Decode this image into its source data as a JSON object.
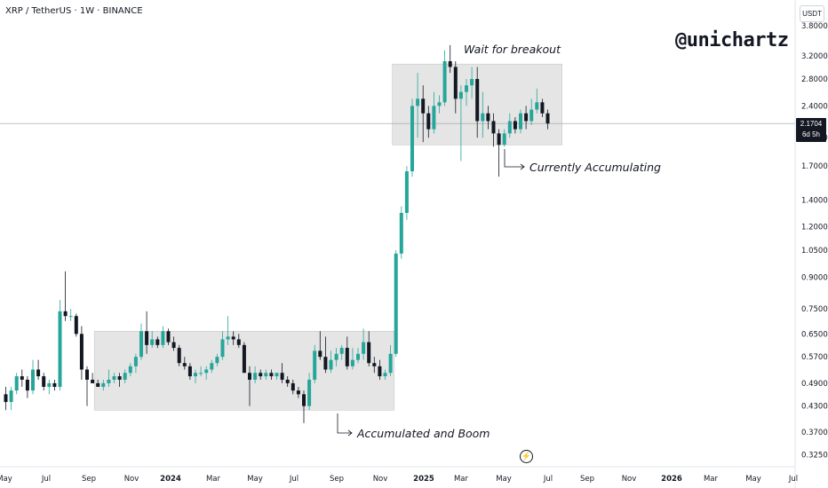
{
  "header": {
    "symbol": "XRP / TetherUS · 1W · BINANCE",
    "currency": "USDT"
  },
  "watermark": "@unichartz",
  "current_price": {
    "value": "2.1704",
    "countdown": "6d 5h"
  },
  "annotations": {
    "top": "Wait for breakout",
    "right": "Currently Accumulating",
    "bottom": "Accumulated and Boom"
  },
  "colors": {
    "up": "#26a69a",
    "down": "#131722",
    "box": "#dcdcdc",
    "price_line": "#9aa0a6"
  },
  "chart_data": {
    "type": "candlestick",
    "y_scale": "log",
    "ylim": [
      0.31,
      4.1
    ],
    "y_ticks": [
      "3.8000",
      "3.2000",
      "2.8000",
      "2.4000",
      "2.0000",
      "1.7000",
      "1.4000",
      "1.2000",
      "1.0500",
      "0.9000",
      "0.7500",
      "0.6500",
      "0.5700",
      "0.4900",
      "0.4300",
      "0.3700",
      "0.3250"
    ],
    "x_ticks": [
      "May",
      "Jul",
      "Sep",
      "Nov",
      "2024",
      "Mar",
      "May",
      "Jul",
      "Sep",
      "Nov",
      "2025",
      "Mar",
      "May",
      "Jul",
      "Sep",
      "Nov",
      "2026",
      "Mar",
      "May",
      "Jul"
    ],
    "candles": [
      {
        "o": 0.46,
        "h": 0.48,
        "l": 0.42,
        "c": 0.44
      },
      {
        "o": 0.44,
        "h": 0.48,
        "l": 0.42,
        "c": 0.47
      },
      {
        "o": 0.47,
        "h": 0.52,
        "l": 0.46,
        "c": 0.51
      },
      {
        "o": 0.51,
        "h": 0.53,
        "l": 0.48,
        "c": 0.5
      },
      {
        "o": 0.5,
        "h": 0.51,
        "l": 0.45,
        "c": 0.47
      },
      {
        "o": 0.47,
        "h": 0.56,
        "l": 0.46,
        "c": 0.53
      },
      {
        "o": 0.53,
        "h": 0.56,
        "l": 0.5,
        "c": 0.51
      },
      {
        "o": 0.51,
        "h": 0.52,
        "l": 0.47,
        "c": 0.48
      },
      {
        "o": 0.48,
        "h": 0.5,
        "l": 0.46,
        "c": 0.49
      },
      {
        "o": 0.49,
        "h": 0.5,
        "l": 0.47,
        "c": 0.48
      },
      {
        "o": 0.48,
        "h": 0.79,
        "l": 0.47,
        "c": 0.74
      },
      {
        "o": 0.74,
        "h": 0.93,
        "l": 0.7,
        "c": 0.72
      },
      {
        "o": 0.72,
        "h": 0.75,
        "l": 0.7,
        "c": 0.72
      },
      {
        "o": 0.72,
        "h": 0.73,
        "l": 0.64,
        "c": 0.65
      },
      {
        "o": 0.65,
        "h": 0.68,
        "l": 0.5,
        "c": 0.53
      },
      {
        "o": 0.53,
        "h": 0.54,
        "l": 0.43,
        "c": 0.5
      },
      {
        "o": 0.5,
        "h": 0.52,
        "l": 0.49,
        "c": 0.49
      },
      {
        "o": 0.49,
        "h": 0.5,
        "l": 0.48,
        "c": 0.48
      },
      {
        "o": 0.48,
        "h": 0.5,
        "l": 0.47,
        "c": 0.49
      },
      {
        "o": 0.49,
        "h": 0.53,
        "l": 0.48,
        "c": 0.5
      },
      {
        "o": 0.5,
        "h": 0.52,
        "l": 0.49,
        "c": 0.51
      },
      {
        "o": 0.51,
        "h": 0.52,
        "l": 0.48,
        "c": 0.5
      },
      {
        "o": 0.5,
        "h": 0.53,
        "l": 0.49,
        "c": 0.52
      },
      {
        "o": 0.52,
        "h": 0.55,
        "l": 0.51,
        "c": 0.54
      },
      {
        "o": 0.54,
        "h": 0.58,
        "l": 0.52,
        "c": 0.57
      },
      {
        "o": 0.57,
        "h": 0.69,
        "l": 0.56,
        "c": 0.66
      },
      {
        "o": 0.66,
        "h": 0.74,
        "l": 0.58,
        "c": 0.61
      },
      {
        "o": 0.61,
        "h": 0.66,
        "l": 0.6,
        "c": 0.63
      },
      {
        "o": 0.63,
        "h": 0.64,
        "l": 0.6,
        "c": 0.61
      },
      {
        "o": 0.61,
        "h": 0.68,
        "l": 0.6,
        "c": 0.66
      },
      {
        "o": 0.66,
        "h": 0.67,
        "l": 0.61,
        "c": 0.62
      },
      {
        "o": 0.62,
        "h": 0.64,
        "l": 0.59,
        "c": 0.6
      },
      {
        "o": 0.6,
        "h": 0.61,
        "l": 0.54,
        "c": 0.55
      },
      {
        "o": 0.55,
        "h": 0.57,
        "l": 0.53,
        "c": 0.54
      },
      {
        "o": 0.54,
        "h": 0.55,
        "l": 0.5,
        "c": 0.51
      },
      {
        "o": 0.51,
        "h": 0.53,
        "l": 0.49,
        "c": 0.52
      },
      {
        "o": 0.52,
        "h": 0.54,
        "l": 0.51,
        "c": 0.52
      },
      {
        "o": 0.52,
        "h": 0.54,
        "l": 0.5,
        "c": 0.53
      },
      {
        "o": 0.53,
        "h": 0.56,
        "l": 0.52,
        "c": 0.55
      },
      {
        "o": 0.55,
        "h": 0.58,
        "l": 0.54,
        "c": 0.57
      },
      {
        "o": 0.57,
        "h": 0.66,
        "l": 0.56,
        "c": 0.63
      },
      {
        "o": 0.63,
        "h": 0.72,
        "l": 0.61,
        "c": 0.64
      },
      {
        "o": 0.64,
        "h": 0.66,
        "l": 0.61,
        "c": 0.63
      },
      {
        "o": 0.63,
        "h": 0.65,
        "l": 0.6,
        "c": 0.61
      },
      {
        "o": 0.61,
        "h": 0.62,
        "l": 0.55,
        "c": 0.52
      },
      {
        "o": 0.52,
        "h": 0.54,
        "l": 0.43,
        "c": 0.5
      },
      {
        "o": 0.5,
        "h": 0.54,
        "l": 0.49,
        "c": 0.52
      },
      {
        "o": 0.52,
        "h": 0.53,
        "l": 0.5,
        "c": 0.51
      },
      {
        "o": 0.51,
        "h": 0.53,
        "l": 0.5,
        "c": 0.52
      },
      {
        "o": 0.52,
        "h": 0.53,
        "l": 0.5,
        "c": 0.51
      },
      {
        "o": 0.51,
        "h": 0.52,
        "l": 0.5,
        "c": 0.52
      },
      {
        "o": 0.52,
        "h": 0.55,
        "l": 0.49,
        "c": 0.5
      },
      {
        "o": 0.5,
        "h": 0.51,
        "l": 0.48,
        "c": 0.49
      },
      {
        "o": 0.49,
        "h": 0.5,
        "l": 0.46,
        "c": 0.47
      },
      {
        "o": 0.47,
        "h": 0.48,
        "l": 0.45,
        "c": 0.46
      },
      {
        "o": 0.46,
        "h": 0.47,
        "l": 0.39,
        "c": 0.43
      },
      {
        "o": 0.43,
        "h": 0.52,
        "l": 0.42,
        "c": 0.5
      },
      {
        "o": 0.5,
        "h": 0.61,
        "l": 0.49,
        "c": 0.59
      },
      {
        "o": 0.59,
        "h": 0.66,
        "l": 0.56,
        "c": 0.57
      },
      {
        "o": 0.57,
        "h": 0.64,
        "l": 0.52,
        "c": 0.53
      },
      {
        "o": 0.53,
        "h": 0.59,
        "l": 0.52,
        "c": 0.56
      },
      {
        "o": 0.56,
        "h": 0.6,
        "l": 0.54,
        "c": 0.58
      },
      {
        "o": 0.58,
        "h": 0.61,
        "l": 0.56,
        "c": 0.6
      },
      {
        "o": 0.6,
        "h": 0.64,
        "l": 0.53,
        "c": 0.54
      },
      {
        "o": 0.54,
        "h": 0.6,
        "l": 0.53,
        "c": 0.56
      },
      {
        "o": 0.56,
        "h": 0.6,
        "l": 0.55,
        "c": 0.58
      },
      {
        "o": 0.58,
        "h": 0.67,
        "l": 0.56,
        "c": 0.62
      },
      {
        "o": 0.62,
        "h": 0.66,
        "l": 0.54,
        "c": 0.55
      },
      {
        "o": 0.55,
        "h": 0.57,
        "l": 0.52,
        "c": 0.54
      },
      {
        "o": 0.54,
        "h": 0.56,
        "l": 0.5,
        "c": 0.51
      },
      {
        "o": 0.51,
        "h": 0.53,
        "l": 0.5,
        "c": 0.52
      },
      {
        "o": 0.52,
        "h": 0.61,
        "l": 0.51,
        "c": 0.58
      },
      {
        "o": 0.58,
        "h": 1.05,
        "l": 0.57,
        "c": 1.03
      },
      {
        "o": 1.03,
        "h": 1.35,
        "l": 1.0,
        "c": 1.3
      },
      {
        "o": 1.3,
        "h": 1.7,
        "l": 1.25,
        "c": 1.65
      },
      {
        "o": 1.65,
        "h": 2.5,
        "l": 1.6,
        "c": 2.4
      },
      {
        "o": 2.4,
        "h": 2.9,
        "l": 2.0,
        "c": 2.5
      },
      {
        "o": 2.5,
        "h": 2.7,
        "l": 1.95,
        "c": 2.3
      },
      {
        "o": 2.3,
        "h": 2.4,
        "l": 2.0,
        "c": 2.1
      },
      {
        "o": 2.1,
        "h": 2.6,
        "l": 2.05,
        "c": 2.4
      },
      {
        "o": 2.4,
        "h": 2.55,
        "l": 2.3,
        "c": 2.45
      },
      {
        "o": 2.45,
        "h": 3.3,
        "l": 2.4,
        "c": 3.1
      },
      {
        "o": 3.1,
        "h": 3.4,
        "l": 2.9,
        "c": 3.0
      },
      {
        "o": 3.0,
        "h": 3.1,
        "l": 2.3,
        "c": 2.5
      },
      {
        "o": 2.5,
        "h": 2.7,
        "l": 1.75,
        "c": 2.6
      },
      {
        "o": 2.6,
        "h": 2.8,
        "l": 2.4,
        "c": 2.7
      },
      {
        "o": 2.7,
        "h": 3.0,
        "l": 2.5,
        "c": 2.8
      },
      {
        "o": 2.8,
        "h": 3.0,
        "l": 2.0,
        "c": 2.2
      },
      {
        "o": 2.2,
        "h": 2.6,
        "l": 2.0,
        "c": 2.3
      },
      {
        "o": 2.3,
        "h": 2.4,
        "l": 2.1,
        "c": 2.2
      },
      {
        "o": 2.2,
        "h": 2.3,
        "l": 1.9,
        "c": 2.05
      },
      {
        "o": 2.05,
        "h": 2.1,
        "l": 1.6,
        "c": 1.92
      },
      {
        "o": 1.92,
        "h": 2.1,
        "l": 1.9,
        "c": 2.05
      },
      {
        "o": 2.05,
        "h": 2.3,
        "l": 2.0,
        "c": 2.2
      },
      {
        "o": 2.2,
        "h": 2.25,
        "l": 2.05,
        "c": 2.1
      },
      {
        "o": 2.1,
        "h": 2.35,
        "l": 2.05,
        "c": 2.3
      },
      {
        "o": 2.3,
        "h": 2.4,
        "l": 2.1,
        "c": 2.2
      },
      {
        "o": 2.2,
        "h": 2.5,
        "l": 2.15,
        "c": 2.35
      },
      {
        "o": 2.35,
        "h": 2.65,
        "l": 2.3,
        "c": 2.45
      },
      {
        "o": 2.45,
        "h": 2.5,
        "l": 2.25,
        "c": 2.3
      },
      {
        "o": 2.3,
        "h": 2.35,
        "l": 2.1,
        "c": 2.17
      }
    ],
    "zones": [
      {
        "label": "Accumulated and Boom",
        "y_low": 0.42,
        "y_high": 0.66
      },
      {
        "label": "Wait for breakout",
        "y_low": 1.92,
        "y_high": 3.05
      }
    ]
  }
}
